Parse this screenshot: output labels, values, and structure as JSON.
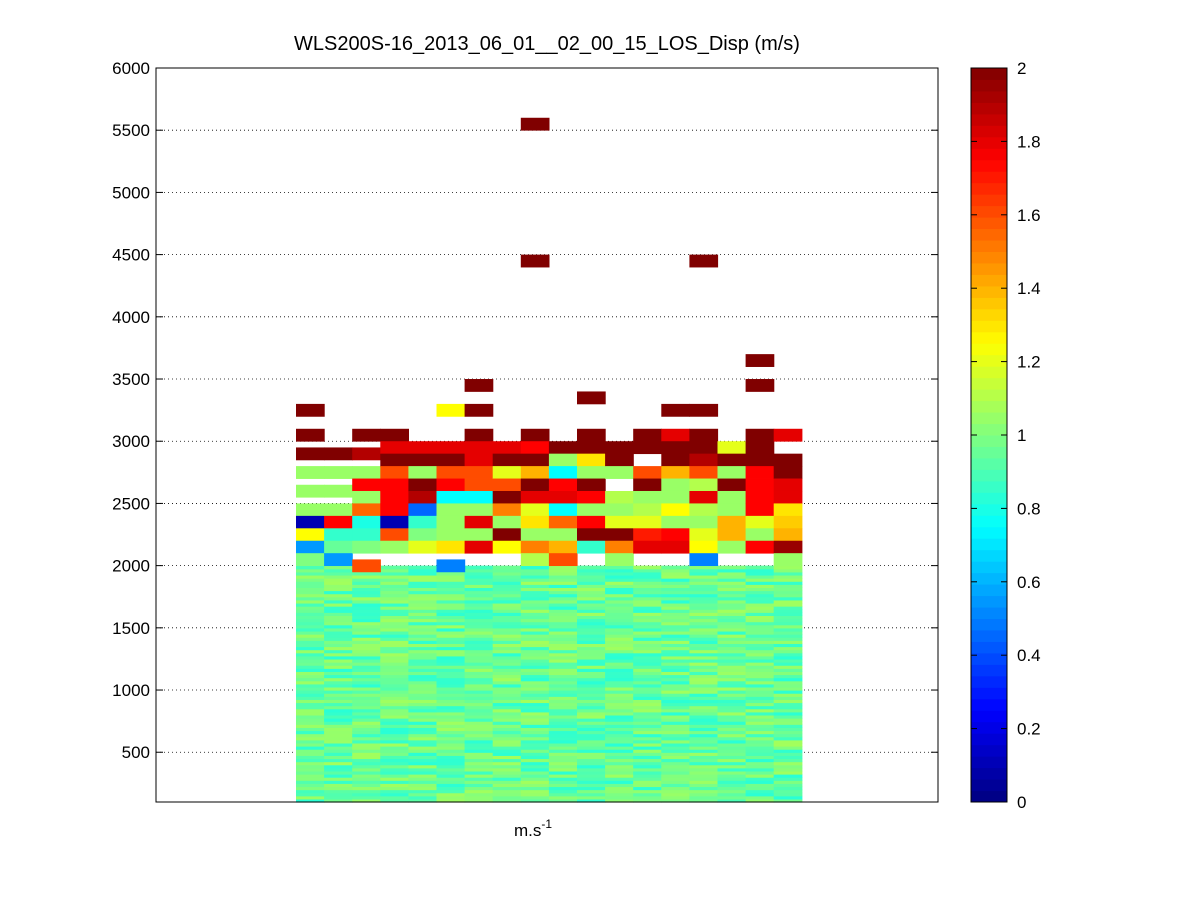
{
  "chart_data": {
    "type": "heatmap",
    "title": "WLS200S-16_2013_06_01__02_00_15_LOS_Disp (m/s)",
    "xlabel": "m.s",
    "xlabel_superscript": "-1",
    "ylabel": "",
    "ylim": [
      100,
      6000
    ],
    "yticks": [
      500,
      1000,
      1500,
      2000,
      2500,
      3000,
      3500,
      4000,
      4500,
      5000,
      5500,
      6000
    ],
    "grid": "horizontal dotted",
    "colormap": "jet",
    "clim": [
      0,
      2
    ],
    "colorbar": {
      "location": "right",
      "ticks": [
        0,
        0.2,
        0.4,
        0.6,
        0.8,
        1,
        1.2,
        1.4,
        1.6,
        1.8,
        2
      ]
    },
    "columns": 18,
    "range_gate_height": 100,
    "lower_field": {
      "altitude_range": [
        100,
        2000
      ],
      "typical_value": 0.95,
      "spread": 0.12
    },
    "cells": [
      {
        "col": 0,
        "alt": 3250,
        "value": 2.0
      },
      {
        "col": 0,
        "alt": 3050,
        "value": 2.0
      },
      {
        "col": 0,
        "alt": 2900,
        "value": 2.0
      },
      {
        "col": 0,
        "alt": 2750,
        "value": 1.05
      },
      {
        "col": 0,
        "alt": 2600,
        "value": 1.05
      },
      {
        "col": 0,
        "alt": 2450,
        "value": 1.05
      },
      {
        "col": 0,
        "alt": 2350,
        "value": 0.1
      },
      {
        "col": 0,
        "alt": 2250,
        "value": 1.25
      },
      {
        "col": 0,
        "alt": 2150,
        "value": 0.55
      },
      {
        "col": 0,
        "alt": 2050,
        "value": 1.0
      },
      {
        "col": 1,
        "alt": 2900,
        "value": 2.0
      },
      {
        "col": 1,
        "alt": 2750,
        "value": 1.05
      },
      {
        "col": 1,
        "alt": 2600,
        "value": 1.05
      },
      {
        "col": 1,
        "alt": 2450,
        "value": 1.05
      },
      {
        "col": 1,
        "alt": 2350,
        "value": 1.75
      },
      {
        "col": 1,
        "alt": 2250,
        "value": 0.85
      },
      {
        "col": 1,
        "alt": 2150,
        "value": 0.95
      },
      {
        "col": 1,
        "alt": 2050,
        "value": 0.55
      },
      {
        "col": 2,
        "alt": 3050,
        "value": 2.0
      },
      {
        "col": 2,
        "alt": 2900,
        "value": 1.9
      },
      {
        "col": 2,
        "alt": 2750,
        "value": 1.05
      },
      {
        "col": 2,
        "alt": 2650,
        "value": 1.75
      },
      {
        "col": 2,
        "alt": 2550,
        "value": 1.05
      },
      {
        "col": 2,
        "alt": 2450,
        "value": 1.55
      },
      {
        "col": 2,
        "alt": 2350,
        "value": 0.8
      },
      {
        "col": 2,
        "alt": 2250,
        "value": 0.85
      },
      {
        "col": 2,
        "alt": 2150,
        "value": 1.0
      },
      {
        "col": 2,
        "alt": 2000,
        "value": 1.6
      },
      {
        "col": 3,
        "alt": 3050,
        "value": 2.0
      },
      {
        "col": 3,
        "alt": 2950,
        "value": 1.8
      },
      {
        "col": 3,
        "alt": 2850,
        "value": 2.0
      },
      {
        "col": 3,
        "alt": 2750,
        "value": 1.6
      },
      {
        "col": 3,
        "alt": 2650,
        "value": 1.75
      },
      {
        "col": 3,
        "alt": 2550,
        "value": 1.75
      },
      {
        "col": 3,
        "alt": 2450,
        "value": 1.75
      },
      {
        "col": 3,
        "alt": 2350,
        "value": 0.1
      },
      {
        "col": 3,
        "alt": 2250,
        "value": 1.6
      },
      {
        "col": 3,
        "alt": 2150,
        "value": 1.05
      },
      {
        "col": 4,
        "alt": 2950,
        "value": 1.8
      },
      {
        "col": 4,
        "alt": 2850,
        "value": 2.0
      },
      {
        "col": 4,
        "alt": 2750,
        "value": 1.05
      },
      {
        "col": 4,
        "alt": 2650,
        "value": 2.0
      },
      {
        "col": 4,
        "alt": 2550,
        "value": 1.9
      },
      {
        "col": 4,
        "alt": 2450,
        "value": 0.45
      },
      {
        "col": 4,
        "alt": 2350,
        "value": 0.85
      },
      {
        "col": 4,
        "alt": 2250,
        "value": 1.0
      },
      {
        "col": 4,
        "alt": 2150,
        "value": 1.2
      },
      {
        "col": 5,
        "alt": 3250,
        "value": 1.25
      },
      {
        "col": 5,
        "alt": 2950,
        "value": 1.8
      },
      {
        "col": 5,
        "alt": 2850,
        "value": 2.0
      },
      {
        "col": 5,
        "alt": 2750,
        "value": 1.6
      },
      {
        "col": 5,
        "alt": 2650,
        "value": 1.75
      },
      {
        "col": 5,
        "alt": 2550,
        "value": 0.75
      },
      {
        "col": 5,
        "alt": 2450,
        "value": 1.05
      },
      {
        "col": 5,
        "alt": 2350,
        "value": 1.05
      },
      {
        "col": 5,
        "alt": 2250,
        "value": 1.05
      },
      {
        "col": 5,
        "alt": 2150,
        "value": 1.3
      },
      {
        "col": 5,
        "alt": 2000,
        "value": 0.5
      },
      {
        "col": 6,
        "alt": 3450,
        "value": 2.0
      },
      {
        "col": 6,
        "alt": 3250,
        "value": 2.0
      },
      {
        "col": 6,
        "alt": 3050,
        "value": 2.0
      },
      {
        "col": 6,
        "alt": 2950,
        "value": 1.8
      },
      {
        "col": 6,
        "alt": 2850,
        "value": 1.8
      },
      {
        "col": 6,
        "alt": 2750,
        "value": 1.6
      },
      {
        "col": 6,
        "alt": 2650,
        "value": 1.6
      },
      {
        "col": 6,
        "alt": 2550,
        "value": 0.75
      },
      {
        "col": 6,
        "alt": 2450,
        "value": 1.05
      },
      {
        "col": 6,
        "alt": 2350,
        "value": 1.8
      },
      {
        "col": 6,
        "alt": 2250,
        "value": 1.05
      },
      {
        "col": 6,
        "alt": 2150,
        "value": 1.8
      },
      {
        "col": 7,
        "alt": 2950,
        "value": 1.8
      },
      {
        "col": 7,
        "alt": 2850,
        "value": 2.0
      },
      {
        "col": 7,
        "alt": 2750,
        "value": 1.2
      },
      {
        "col": 7,
        "alt": 2650,
        "value": 1.6
      },
      {
        "col": 7,
        "alt": 2550,
        "value": 2.0
      },
      {
        "col": 7,
        "alt": 2450,
        "value": 1.5
      },
      {
        "col": 7,
        "alt": 2350,
        "value": 1.05
      },
      {
        "col": 7,
        "alt": 2250,
        "value": 2.0
      },
      {
        "col": 7,
        "alt": 2150,
        "value": 1.25
      },
      {
        "col": 8,
        "alt": 5550,
        "value": 2.0
      },
      {
        "col": 8,
        "alt": 4450,
        "value": 2.0
      },
      {
        "col": 8,
        "alt": 3050,
        "value": 2.0
      },
      {
        "col": 8,
        "alt": 2950,
        "value": 1.75
      },
      {
        "col": 8,
        "alt": 2850,
        "value": 2.0
      },
      {
        "col": 8,
        "alt": 2750,
        "value": 1.4
      },
      {
        "col": 8,
        "alt": 2650,
        "value": 2.0
      },
      {
        "col": 8,
        "alt": 2550,
        "value": 1.8
      },
      {
        "col": 8,
        "alt": 2450,
        "value": 1.2
      },
      {
        "col": 8,
        "alt": 2350,
        "value": 1.3
      },
      {
        "col": 8,
        "alt": 2250,
        "value": 1.05
      },
      {
        "col": 8,
        "alt": 2150,
        "value": 1.5
      },
      {
        "col": 8,
        "alt": 2050,
        "value": 1.1
      },
      {
        "col": 9,
        "alt": 2950,
        "value": 2.0
      },
      {
        "col": 9,
        "alt": 2850,
        "value": 1.05
      },
      {
        "col": 9,
        "alt": 2750,
        "value": 0.75
      },
      {
        "col": 9,
        "alt": 2650,
        "value": 1.75
      },
      {
        "col": 9,
        "alt": 2550,
        "value": 1.8
      },
      {
        "col": 9,
        "alt": 2450,
        "value": 0.75
      },
      {
        "col": 9,
        "alt": 2350,
        "value": 1.55
      },
      {
        "col": 9,
        "alt": 2250,
        "value": 1.05
      },
      {
        "col": 9,
        "alt": 2150,
        "value": 1.4
      },
      {
        "col": 9,
        "alt": 2050,
        "value": 1.6
      },
      {
        "col": 10,
        "alt": 3350,
        "value": 2.0
      },
      {
        "col": 10,
        "alt": 3050,
        "value": 2.0
      },
      {
        "col": 10,
        "alt": 2950,
        "value": 2.0
      },
      {
        "col": 10,
        "alt": 2850,
        "value": 1.3
      },
      {
        "col": 10,
        "alt": 2750,
        "value": 1.05
      },
      {
        "col": 10,
        "alt": 2650,
        "value": 2.0
      },
      {
        "col": 10,
        "alt": 2550,
        "value": 1.75
      },
      {
        "col": 10,
        "alt": 2450,
        "value": 1.05
      },
      {
        "col": 10,
        "alt": 2350,
        "value": 1.75
      },
      {
        "col": 10,
        "alt": 2250,
        "value": 2.0
      },
      {
        "col": 10,
        "alt": 2150,
        "value": 0.85
      },
      {
        "col": 11,
        "alt": 2950,
        "value": 2.0
      },
      {
        "col": 11,
        "alt": 2850,
        "value": 2.0
      },
      {
        "col": 11,
        "alt": 2750,
        "value": 1.05
      },
      {
        "col": 11,
        "alt": 2550,
        "value": 1.1
      },
      {
        "col": 11,
        "alt": 2450,
        "value": 1.05
      },
      {
        "col": 11,
        "alt": 2350,
        "value": 1.2
      },
      {
        "col": 11,
        "alt": 2250,
        "value": 2.0
      },
      {
        "col": 11,
        "alt": 2150,
        "value": 1.5
      },
      {
        "col": 11,
        "alt": 2050,
        "value": 1.05
      },
      {
        "col": 12,
        "alt": 3050,
        "value": 2.0
      },
      {
        "col": 12,
        "alt": 2950,
        "value": 2.0
      },
      {
        "col": 12,
        "alt": 2750,
        "value": 1.6
      },
      {
        "col": 12,
        "alt": 2650,
        "value": 2.0
      },
      {
        "col": 12,
        "alt": 2550,
        "value": 1.05
      },
      {
        "col": 12,
        "alt": 2450,
        "value": 1.1
      },
      {
        "col": 12,
        "alt": 2350,
        "value": 1.2
      },
      {
        "col": 12,
        "alt": 2250,
        "value": 1.7
      },
      {
        "col": 12,
        "alt": 2150,
        "value": 1.8
      },
      {
        "col": 13,
        "alt": 3250,
        "value": 2.0
      },
      {
        "col": 13,
        "alt": 3050,
        "value": 1.8
      },
      {
        "col": 13,
        "alt": 2950,
        "value": 2.0
      },
      {
        "col": 13,
        "alt": 2850,
        "value": 2.0
      },
      {
        "col": 13,
        "alt": 2750,
        "value": 1.4
      },
      {
        "col": 13,
        "alt": 2650,
        "value": 1.05
      },
      {
        "col": 13,
        "alt": 2550,
        "value": 1.05
      },
      {
        "col": 13,
        "alt": 2450,
        "value": 1.25
      },
      {
        "col": 13,
        "alt": 2350,
        "value": 1.05
      },
      {
        "col": 13,
        "alt": 2250,
        "value": 1.75
      },
      {
        "col": 13,
        "alt": 2150,
        "value": 1.8
      },
      {
        "col": 14,
        "alt": 4450,
        "value": 2.0
      },
      {
        "col": 14,
        "alt": 3250,
        "value": 2.0
      },
      {
        "col": 14,
        "alt": 3050,
        "value": 2.0
      },
      {
        "col": 14,
        "alt": 2950,
        "value": 2.0
      },
      {
        "col": 14,
        "alt": 2850,
        "value": 1.9
      },
      {
        "col": 14,
        "alt": 2750,
        "value": 1.6
      },
      {
        "col": 14,
        "alt": 2650,
        "value": 1.1
      },
      {
        "col": 14,
        "alt": 2550,
        "value": 1.8
      },
      {
        "col": 14,
        "alt": 2450,
        "value": 1.1
      },
      {
        "col": 14,
        "alt": 2350,
        "value": 1.05
      },
      {
        "col": 14,
        "alt": 2250,
        "value": 1.2
      },
      {
        "col": 14,
        "alt": 2150,
        "value": 1.25
      },
      {
        "col": 14,
        "alt": 2050,
        "value": 0.5
      },
      {
        "col": 15,
        "alt": 2950,
        "value": 1.2
      },
      {
        "col": 15,
        "alt": 2850,
        "value": 2.0
      },
      {
        "col": 15,
        "alt": 2750,
        "value": 1.05
      },
      {
        "col": 15,
        "alt": 2650,
        "value": 2.0
      },
      {
        "col": 15,
        "alt": 2550,
        "value": 1.05
      },
      {
        "col": 15,
        "alt": 2450,
        "value": 1.05
      },
      {
        "col": 15,
        "alt": 2350,
        "value": 1.4
      },
      {
        "col": 15,
        "alt": 2250,
        "value": 1.4
      },
      {
        "col": 15,
        "alt": 2150,
        "value": 1.05
      },
      {
        "col": 16,
        "alt": 3650,
        "value": 2.0
      },
      {
        "col": 16,
        "alt": 3450,
        "value": 2.0
      },
      {
        "col": 16,
        "alt": 3050,
        "value": 2.0
      },
      {
        "col": 16,
        "alt": 2950,
        "value": 2.0
      },
      {
        "col": 16,
        "alt": 2850,
        "value": 2.0
      },
      {
        "col": 16,
        "alt": 2750,
        "value": 1.75
      },
      {
        "col": 16,
        "alt": 2650,
        "value": 1.75
      },
      {
        "col": 16,
        "alt": 2550,
        "value": 1.75
      },
      {
        "col": 16,
        "alt": 2450,
        "value": 1.75
      },
      {
        "col": 16,
        "alt": 2350,
        "value": 1.2
      },
      {
        "col": 16,
        "alt": 2250,
        "value": 1.05
      },
      {
        "col": 16,
        "alt": 2150,
        "value": 1.75
      },
      {
        "col": 17,
        "alt": 3050,
        "value": 1.8
      },
      {
        "col": 17,
        "alt": 2850,
        "value": 2.0
      },
      {
        "col": 17,
        "alt": 2750,
        "value": 2.0
      },
      {
        "col": 17,
        "alt": 2650,
        "value": 1.8
      },
      {
        "col": 17,
        "alt": 2550,
        "value": 1.8
      },
      {
        "col": 17,
        "alt": 2450,
        "value": 1.3
      },
      {
        "col": 17,
        "alt": 2350,
        "value": 1.35
      },
      {
        "col": 17,
        "alt": 2250,
        "value": 1.4
      },
      {
        "col": 17,
        "alt": 2150,
        "value": 1.95
      },
      {
        "col": 17,
        "alt": 2050,
        "value": 1.05
      }
    ]
  }
}
